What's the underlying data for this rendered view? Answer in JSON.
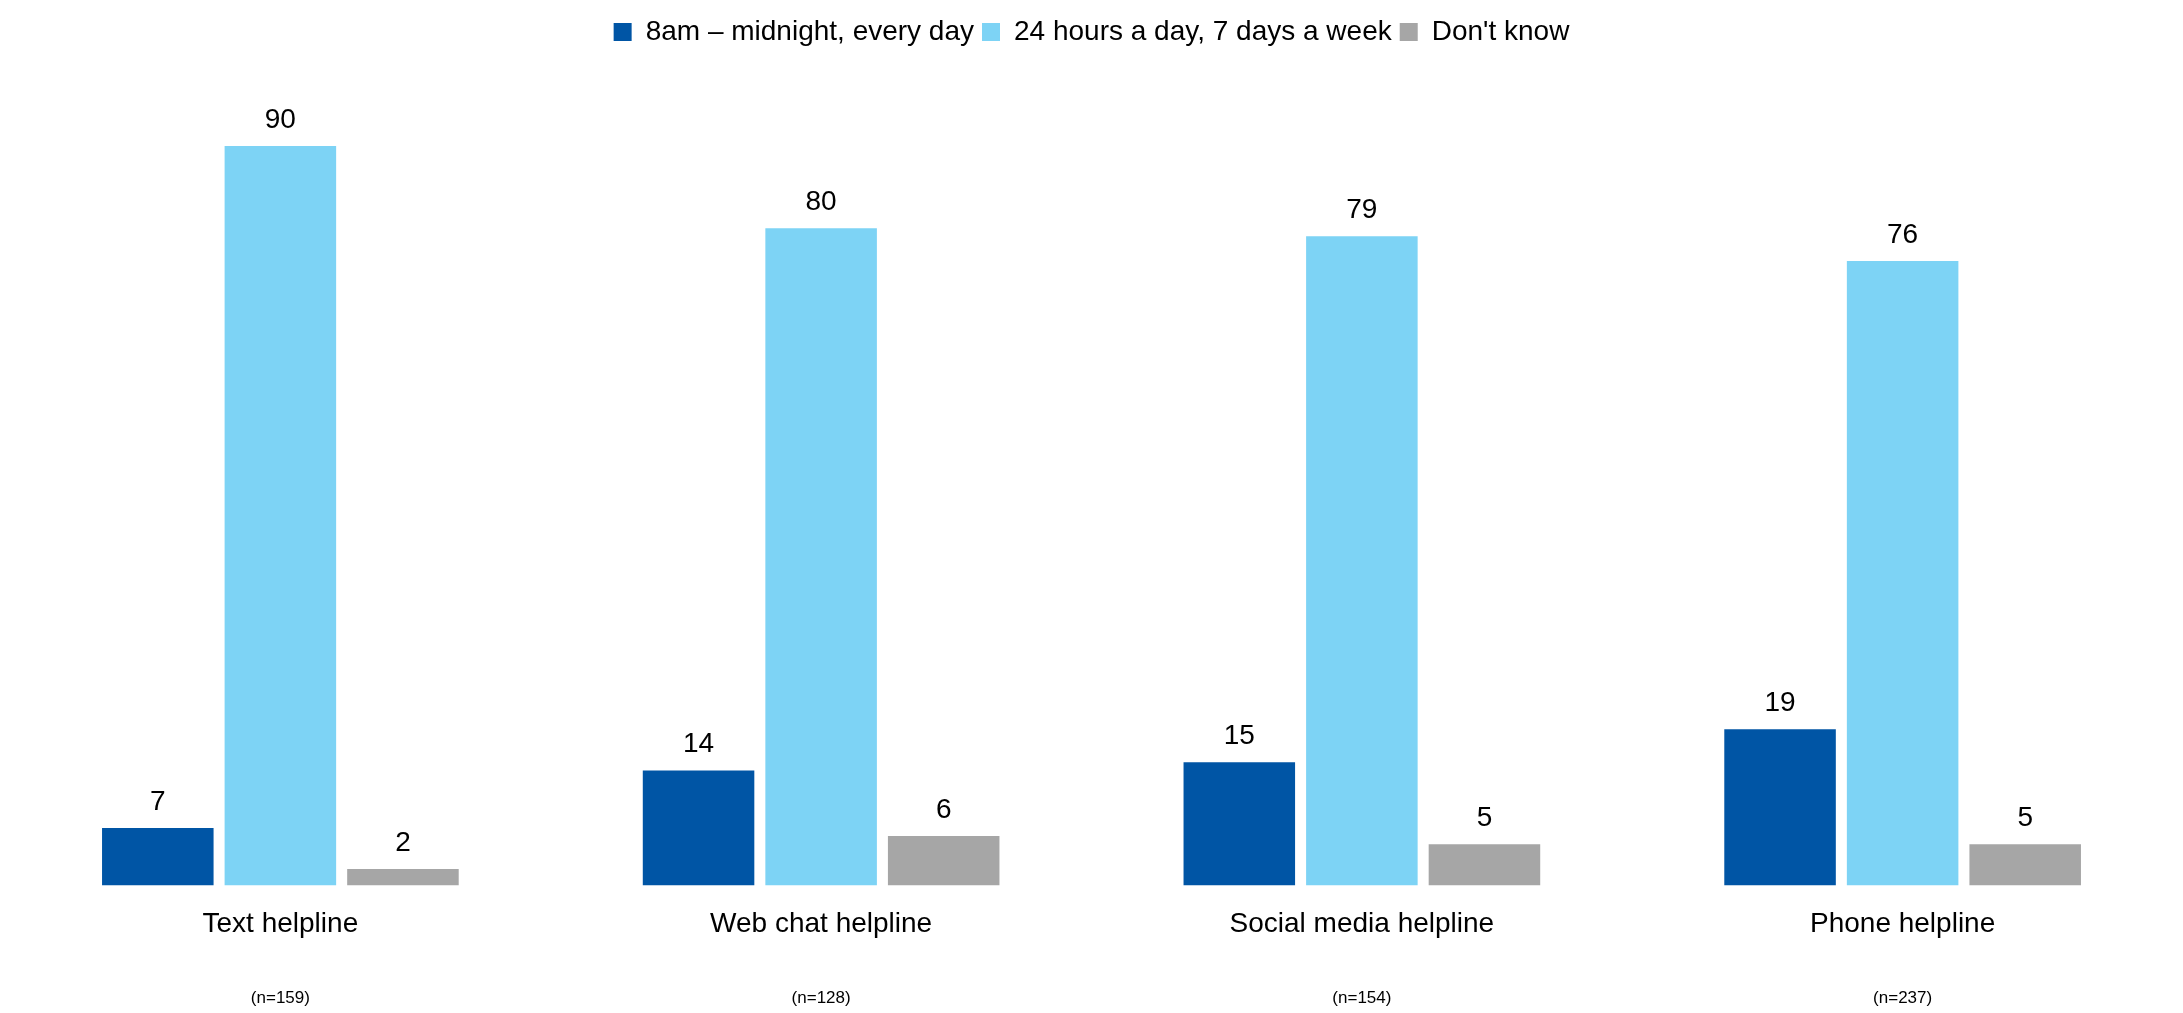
{
  "chart_data": {
    "type": "bar",
    "categories": [
      "Text helpline",
      "Web chat helpline",
      "Social media helpline",
      "Phone helpline"
    ],
    "series": [
      {
        "name": "8am – midnight, every day",
        "color": "#0055a5",
        "values": [
          7,
          14,
          15,
          19
        ]
      },
      {
        "name": "24 hours a day, 7 days a week",
        "color": "#7dd3f5",
        "values": [
          90,
          80,
          79,
          76
        ]
      },
      {
        "name": "Don't know",
        "color": "#a6a6a6",
        "values": [
          2,
          6,
          5,
          5
        ]
      }
    ],
    "data_labels": true,
    "legend": "top",
    "grid": false,
    "annotations": [
      "(n=159)",
      "(n=128)",
      "(n=154)",
      "(n=237)"
    ]
  }
}
